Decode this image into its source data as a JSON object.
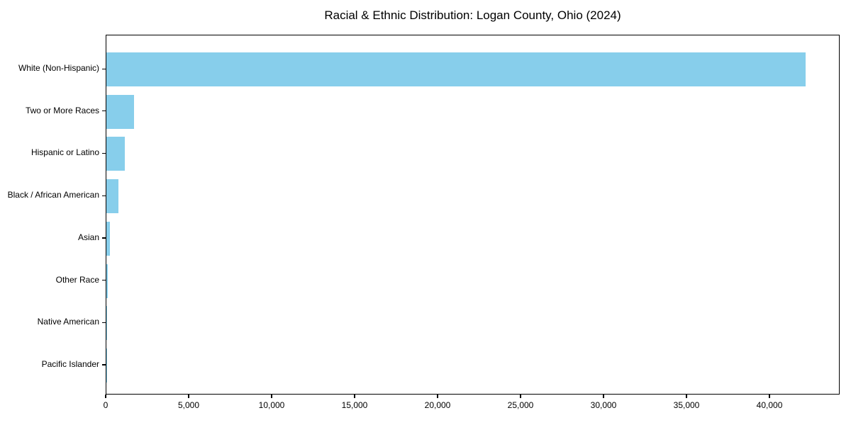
{
  "chart_data": {
    "type": "bar",
    "orientation": "horizontal",
    "title": "Racial & Ethnic Distribution: Logan County, Ohio (2024)",
    "categories": [
      "White (Non-Hispanic)",
      "Two or More Races",
      "Hispanic or Latino",
      "Black / African American",
      "Asian",
      "Other Race",
      "Native American",
      "Pacific Islander"
    ],
    "values": [
      42150,
      1680,
      1110,
      715,
      220,
      90,
      40,
      15
    ],
    "xlabel": "",
    "ylabel": "",
    "xlim": [
      0,
      44230
    ],
    "xticks": [
      0,
      5000,
      10000,
      15000,
      20000,
      25000,
      30000,
      35000,
      40000
    ],
    "xtick_labels": [
      "0",
      "5,000",
      "10,000",
      "15,000",
      "20,000",
      "25,000",
      "30,000",
      "35,000",
      "40,000"
    ],
    "bar_color": "#87CEEB",
    "axis_color": "#000000",
    "background_color": "#ffffff",
    "grid": false,
    "legend": "none",
    "value_labels_shown": false
  }
}
